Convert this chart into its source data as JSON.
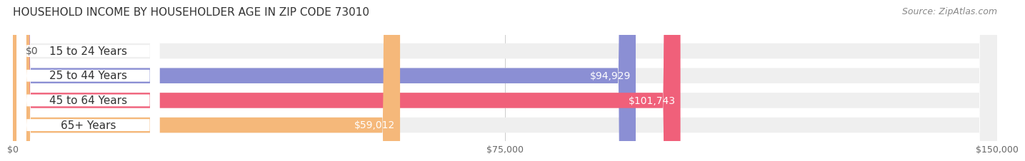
{
  "title": "HOUSEHOLD INCOME BY HOUSEHOLDER AGE IN ZIP CODE 73010",
  "source": "Source: ZipAtlas.com",
  "categories": [
    "15 to 24 Years",
    "25 to 44 Years",
    "45 to 64 Years",
    "65+ Years"
  ],
  "values": [
    0,
    94929,
    101743,
    59012
  ],
  "bar_colors": [
    "#5ec8c0",
    "#8b8fd4",
    "#f0607a",
    "#f5b87a"
  ],
  "bar_bg_color": "#efefef",
  "value_labels": [
    "$0",
    "$94,929",
    "$101,743",
    "$59,012"
  ],
  "x_ticks": [
    0,
    75000,
    150000
  ],
  "x_tick_labels": [
    "$0",
    "$75,000",
    "$150,000"
  ],
  "x_max": 150000,
  "fig_bg_color": "#ffffff",
  "title_fontsize": 11,
  "source_fontsize": 9,
  "label_fontsize": 11,
  "value_fontsize": 10,
  "bar_height": 0.62
}
